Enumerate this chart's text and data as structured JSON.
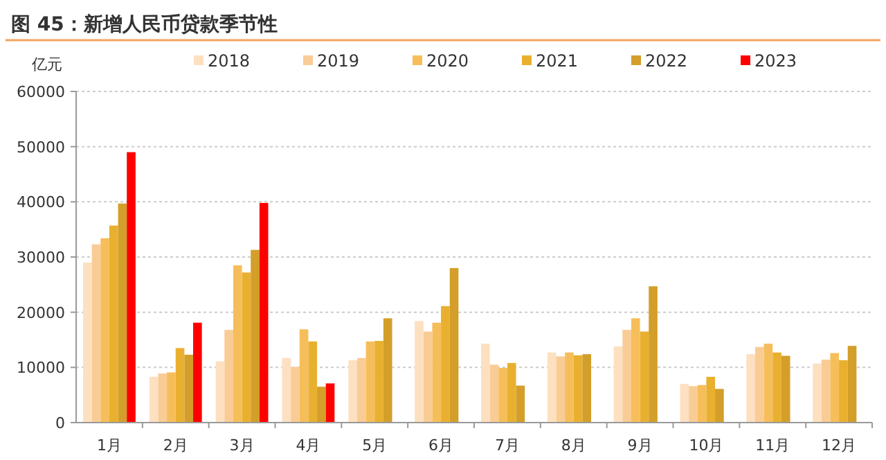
{
  "chart_data": {
    "type": "bar",
    "title": "图 45：新增人民币贷款季节性",
    "ylabel": "亿元",
    "categories": [
      "1月",
      "2月",
      "3月",
      "4月",
      "5月",
      "6月",
      "7月",
      "8月",
      "9月",
      "10月",
      "11月",
      "12月"
    ],
    "ylim": [
      0,
      60000
    ],
    "yticks": [
      0,
      10000,
      20000,
      30000,
      40000,
      50000,
      60000
    ],
    "grid": "y",
    "legend": "top",
    "series": [
      {
        "name": "2018",
        "color": "#fde0c0",
        "values": [
          29000,
          8300,
          11100,
          11700,
          11300,
          18400,
          14300,
          12700,
          13800,
          7000,
          12400,
          10700
        ]
      },
      {
        "name": "2019",
        "color": "#f9cc96",
        "values": [
          32300,
          8900,
          16800,
          10100,
          11700,
          16500,
          10500,
          12000,
          16800,
          6600,
          13700,
          11400
        ]
      },
      {
        "name": "2020",
        "color": "#f6be5a",
        "values": [
          33400,
          9100,
          28500,
          16900,
          14700,
          18100,
          9900,
          12700,
          18900,
          6800,
          14300,
          12600
        ]
      },
      {
        "name": "2021",
        "color": "#e9b030",
        "values": [
          35700,
          13500,
          27200,
          14700,
          14800,
          21100,
          10800,
          12200,
          16500,
          8300,
          12700,
          11300
        ]
      },
      {
        "name": "2022",
        "color": "#d39f2a",
        "values": [
          39700,
          12300,
          31300,
          6500,
          18900,
          28000,
          6700,
          12400,
          24700,
          6100,
          12100,
          13900
        ]
      },
      {
        "name": "2023",
        "color": "#ff0000",
        "values": [
          49000,
          18100,
          39800,
          7100,
          null,
          null,
          null,
          null,
          null,
          null,
          null,
          null
        ]
      }
    ]
  }
}
